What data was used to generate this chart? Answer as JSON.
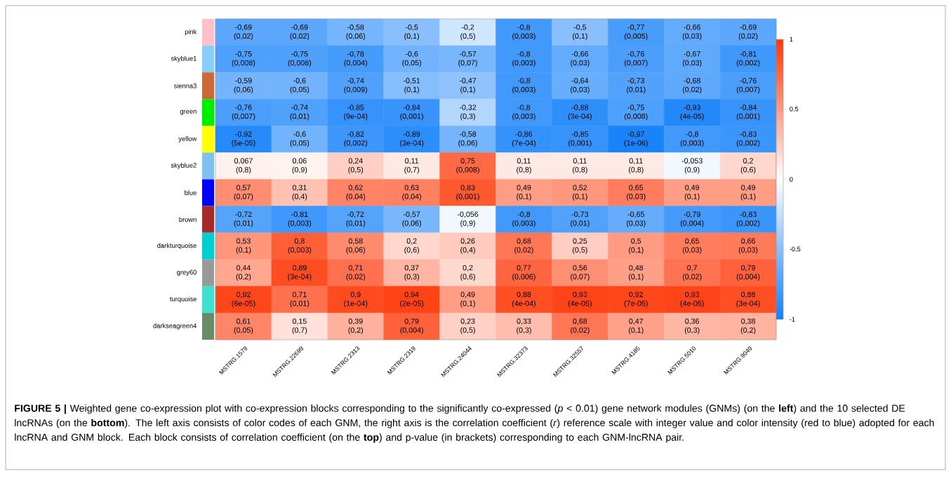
{
  "chart_data": {
    "type": "heatmap",
    "categories": [
      "MSTRG.1579",
      "MSTRG.22699",
      "MSTRG.2313",
      "MSTRG.2319",
      "MSTRG.24044",
      "MSTRG.32373",
      "MSTRG.32557",
      "MSTRG.4185",
      "MSTRG.5010",
      "MSTRG.9049"
    ],
    "y_categories": [
      "pink",
      "skyblue1",
      "sienna3",
      "green",
      "yellow",
      "skyblue2",
      "blue",
      "brown",
      "darkturquoise",
      "grey60",
      "turquoise",
      "darkseagreen4"
    ],
    "colors": [
      "#ffc0cb",
      "#87ceff",
      "#cd6839",
      "#00ee00",
      "#ffff00",
      "#7ec0ee",
      "#0000ff",
      "#a52a2a",
      "#00ced1",
      "#999999",
      "#40e0d0",
      "#698b69"
    ],
    "cells": [
      [
        -0.69,
        -0.69,
        -0.58,
        -0.5,
        -0.2,
        -0.8,
        -0.5,
        -0.77,
        -0.66,
        -0.69
      ],
      [
        -0.75,
        -0.75,
        -0.78,
        -0.6,
        -0.57,
        -0.8,
        -0.66,
        -0.76,
        -0.67,
        -0.81
      ],
      [
        -0.59,
        -0.6,
        -0.74,
        -0.51,
        -0.47,
        -0.8,
        -0.64,
        -0.73,
        -0.68,
        -0.76
      ],
      [
        -0.76,
        -0.74,
        -0.85,
        -0.84,
        -0.32,
        -0.8,
        -0.88,
        -0.75,
        -0.93,
        -0.84
      ],
      [
        -0.92,
        -0.6,
        -0.82,
        -0.89,
        -0.58,
        -0.86,
        -0.85,
        -0.97,
        -0.8,
        -0.83
      ],
      [
        0.067,
        0.06,
        0.24,
        0.11,
        0.75,
        0.11,
        0.11,
        0.11,
        -0.053,
        0.2
      ],
      [
        0.57,
        0.31,
        0.62,
        0.63,
        0.83,
        0.49,
        0.52,
        0.65,
        0.49,
        0.49
      ],
      [
        -0.72,
        -0.81,
        -0.72,
        -0.57,
        -0.056,
        -0.8,
        -0.73,
        -0.65,
        -0.79,
        -0.83
      ],
      [
        0.53,
        0.8,
        0.58,
        0.2,
        0.26,
        0.68,
        0.25,
        0.5,
        0.65,
        0.66
      ],
      [
        0.44,
        0.89,
        0.71,
        0.37,
        0.2,
        0.77,
        0.56,
        0.48,
        0.7,
        0.79
      ],
      [
        0.92,
        0.71,
        0.9,
        0.94,
        0.49,
        0.88,
        0.93,
        0.92,
        0.93,
        0.88
      ],
      [
        0.61,
        0.15,
        0.39,
        0.79,
        0.23,
        0.33,
        0.68,
        0.47,
        0.36,
        0.38
      ]
    ],
    "cell_labels": [
      [
        "-0,69 (0,02)",
        "-0,69 (0,02)",
        "-0,58 (0,06)",
        "-0,5 (0,1)",
        "-0,2 (0,5)",
        "-0,8 (0,003)",
        "-0,5 (0,1)",
        "-0,77 (0,005)",
        "-0,66 (0,03)",
        "-0,69 (0,02)"
      ],
      [
        "-0,75 (0,008)",
        "-0,75 (0,008)",
        "-0,78 (0,004)",
        "-0,6 (0,05)",
        "-0,57 (0,07)",
        "-0,8 (0,003)",
        "-0,66 (0,03)",
        "-0,76 (0,007)",
        "-0,67 (0,03)",
        "-0,81 (0,002)"
      ],
      [
        "-0,59 (0,06)",
        "-0,6 (0,05)",
        "-0,74 (0,009)",
        "-0,51 (0,1)",
        "-0,47 (0,1)",
        "-0,8 (0,003)",
        "-0,64 (0,03)",
        "-0,73 (0,01)",
        "-0,68 (0,02)",
        "-0,76 (0,007)"
      ],
      [
        "-0,76 (0,007)",
        "-0,74 (0,01)",
        "-0,85 (9e-04)",
        "-0,84 (0,001)",
        "-0,32 (0,3)",
        "-0,8 (0,003)",
        "-0,88 (3e-04)",
        "-0,75 (0,008)",
        "-0,93 (4e-05)",
        "-0,84 (0,001)"
      ],
      [
        "-0,92 (5e-05)",
        "-0,6 (0,05)",
        "-0,82 (0,002)",
        "-0,89 (3e-04)",
        "-0,58 (0,06)",
        "-0,86 (7e-04)",
        "-0,85 (0,001)",
        "-0,97 (1e-06)",
        "-0,8 (0,003)",
        "-0,83 (0,002)"
      ],
      [
        "0,067 (0,8)",
        "0,06 (0,9)",
        "0,24 (0,5)",
        "0,11 (0,7)",
        "0,75 (0,008)",
        "0,11 (0,8)",
        "0,11 (0,8)",
        "0,11 (0,8)",
        "-0,053 (0,9)",
        "0,2 (0,6)"
      ],
      [
        "0,57 (0,07)",
        "0,31 (0,4)",
        "0,62 (0,04)",
        "0,63 (0,04)",
        "0,83 (0,001)",
        "0,49 (0,1)",
        "0,52 (0,1)",
        "0,65 (0,03)",
        "0,49 (0,1)",
        "0,49 (0,1)"
      ],
      [
        "-0,72 (0,01)",
        "-0,81 (0,003)",
        "-0,72 (0,01)",
        "-0,57 (0,06)",
        "-0,056 (0,9)",
        "-0,8 (0,003)",
        "-0,73 (0,01)",
        "-0,65 (0,03)",
        "-0,79 (0,004)",
        "-0,83 (0,002)"
      ],
      [
        "0,53 (0,1)",
        "0,8 (0,003)",
        "0,58 (0,06)",
        "0,2 (0,6)",
        "0,26 (0,4)",
        "0,68 (0,02)",
        "0,25 (0,5)",
        "0,5 (0,1)",
        "0,65 (0,03)",
        "0,66 (0,03)"
      ],
      [
        "0,44 (0,2)",
        "0,89 (3e-04)",
        "0,71 (0,02)",
        "0,37 (0,3)",
        "0,2 (0,6)",
        "0,77 (0,006)",
        "0,56 (0,07)",
        "0,48 (0,1)",
        "0,7 (0,02)",
        "0,79 (0,004)"
      ],
      [
        "0,92 (6e-05)",
        "0,71 (0,01)",
        "0,9 (1e-04)",
        "0,94 (2e-05)",
        "0,49 (0,1)",
        "0,88 (4e-04)",
        "0,93 (4e-05)",
        "0,92 (7e-05)",
        "0,93 (4e-05)",
        "0,88 (3e-04)"
      ],
      [
        "0,61 (0,05)",
        "0,15 (0,7)",
        "0,39 (0,2)",
        "0,79 (0,004)",
        "0,23 (0,5)",
        "0,33 (0,3)",
        "0,68 (0,02)",
        "0,47 (0,1)",
        "0,36 (0,3)",
        "0,38 (0,2)"
      ]
    ],
    "clim": [
      -1,
      1
    ],
    "cticks": [
      {
        "value": -1,
        "label": "-1"
      },
      {
        "value": -0.5,
        "label": "-0,5"
      },
      {
        "value": 0,
        "label": "0"
      },
      {
        "value": 0.5,
        "label": "0,5"
      },
      {
        "value": 1,
        "label": "1"
      }
    ],
    "annotations": [
      "**FIGURE 5 |** Weighted gene co-expression plot with co-expression blocks corresponding to the significantly co-expressed (*p* < 0.01) gene network modules (GNMs) (on the **left**) and the 10 selected DE lncRNAs (on the **bottom**). The left axis consists of color codes of each GNM, the right axis is the correlation coefficient (*r*) reference scale with integer value and color intensity (red to blue) adopted for each lncRNA and GNM block. Each block consists of correlation coefficient (on the **top**) and p-value (in brackets) corresponding to each GNM-lncRNA pair."
    ]
  }
}
